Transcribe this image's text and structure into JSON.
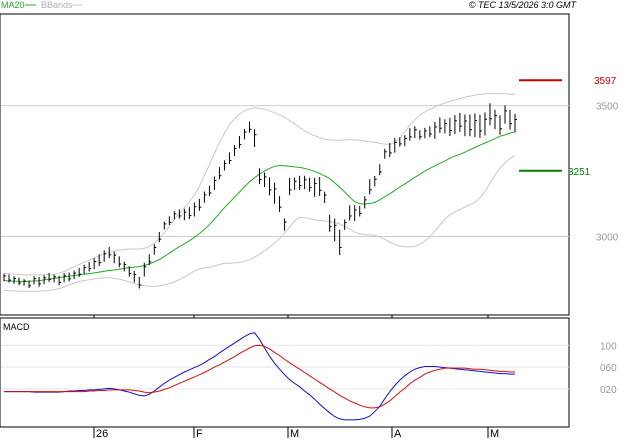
{
  "legend": {
    "ma20": "MA20",
    "bbands": "BBands"
  },
  "copyright": "© TEC 13/5/2026 3:0 GMT",
  "macd_label": "MACD",
  "colors": {
    "background": "#ffffff",
    "grid": "#cccccc",
    "axis": "#000000",
    "ma20": "#22aa22",
    "bbands": "#c8c8c8",
    "candle": "#000000",
    "macd": "#1010c8",
    "signal": "#d01010",
    "resistance": "#c00000",
    "support": "#008000"
  },
  "chart_data": [
    {
      "type": "bar",
      "title": "",
      "xlabel": "",
      "ylabel": "",
      "ylim": [
        2700,
        3850
      ],
      "x_ticks": [
        "26",
        "F",
        "M",
        "A",
        "M"
      ],
      "y_ticks": [
        3000,
        3500
      ],
      "levels": [
        {
          "label": "3597",
          "value": 3597,
          "kind": "resistance"
        },
        {
          "label": "3251",
          "value": 3251,
          "kind": "support"
        }
      ],
      "series": [
        {
          "name": "price",
          "bars": [
            [
              2858,
              2829
            ],
            [
              2855,
              2824
            ],
            [
              2848,
              2819
            ],
            [
              2843,
              2814
            ],
            [
              2837,
              2812
            ],
            [
              2832,
              2803
            ],
            [
              2848,
              2817
            ],
            [
              2845,
              2808
            ],
            [
              2852,
              2818
            ],
            [
              2860,
              2826
            ],
            [
              2855,
              2825
            ],
            [
              2850,
              2813
            ],
            [
              2860,
              2825
            ],
            [
              2862,
              2828
            ],
            [
              2870,
              2837
            ],
            [
              2880,
              2846
            ],
            [
              2892,
              2856
            ],
            [
              2902,
              2866
            ],
            [
              2917,
              2875
            ],
            [
              2932,
              2887
            ],
            [
              2947,
              2903
            ],
            [
              2960,
              2917
            ],
            [
              2942,
              2898
            ],
            [
              2924,
              2882
            ],
            [
              2904,
              2867
            ],
            [
              2886,
              2847
            ],
            [
              2868,
              2824
            ],
            [
              2846,
              2801
            ],
            [
              2900,
              2847
            ],
            [
              2932,
              2891
            ],
            [
              2970,
              2930
            ],
            [
              3017,
              2978
            ],
            [
              3057,
              3027
            ],
            [
              3077,
              3044
            ],
            [
              3096,
              3065
            ],
            [
              3103,
              3068
            ],
            [
              3106,
              3062
            ],
            [
              3112,
              3066
            ],
            [
              3130,
              3076
            ],
            [
              3144,
              3098
            ],
            [
              3172,
              3129
            ],
            [
              3194,
              3154
            ],
            [
              3229,
              3178
            ],
            [
              3265,
              3218
            ],
            [
              3291,
              3252
            ],
            [
              3321,
              3277
            ],
            [
              3349,
              3307
            ],
            [
              3384,
              3337
            ],
            [
              3411,
              3371
            ],
            [
              3439,
              3397
            ],
            [
              3409,
              3342
            ],
            [
              3260,
              3200
            ],
            [
              3244,
              3189
            ],
            [
              3226,
              3157
            ],
            [
              3206,
              3125
            ],
            [
              3154,
              3094
            ],
            [
              3069,
              3022
            ],
            [
              3224,
              3158
            ],
            [
              3225,
              3178
            ],
            [
              3232,
              3178
            ],
            [
              3232,
              3181
            ],
            [
              3225,
              3171
            ],
            [
              3224,
              3152
            ],
            [
              3227,
              3155
            ],
            [
              3171,
              3128
            ],
            [
              3083,
              3018
            ],
            [
              3069,
              2981
            ],
            [
              3026,
              2929
            ],
            [
              3065,
              3025
            ],
            [
              3119,
              3061
            ],
            [
              3119,
              3059
            ],
            [
              3117,
              3076
            ],
            [
              3154,
              3107
            ],
            [
              3219,
              3161
            ],
            [
              3231,
              3191
            ],
            [
              3276,
              3234
            ],
            [
              3335,
              3297
            ],
            [
              3357,
              3303
            ],
            [
              3376,
              3320
            ],
            [
              3379,
              3343
            ],
            [
              3387,
              3345
            ],
            [
              3414,
              3366
            ],
            [
              3421,
              3376
            ],
            [
              3406,
              3370
            ],
            [
              3415,
              3375
            ],
            [
              3421,
              3379
            ],
            [
              3438,
              3373
            ],
            [
              3455,
              3396
            ],
            [
              3448,
              3394
            ],
            [
              3453,
              3384
            ],
            [
              3464,
              3391
            ],
            [
              3472,
              3400
            ],
            [
              3466,
              3383
            ],
            [
              3466,
              3383
            ],
            [
              3470,
              3380
            ],
            [
              3465,
              3377
            ],
            [
              3474,
              3386
            ],
            [
              3509,
              3425
            ],
            [
              3484,
              3410
            ],
            [
              3463,
              3389
            ],
            [
              3501,
              3431
            ],
            [
              3484,
              3408
            ],
            [
              3468,
              3398
            ]
          ]
        },
        {
          "name": "MA20",
          "values": [
            2832,
            2830,
            2829,
            2829,
            2828,
            2829,
            2830,
            2831,
            2834,
            2837,
            2840,
            2843,
            2846,
            2848,
            2851,
            2853,
            2856,
            2858,
            2861,
            2864,
            2867,
            2870,
            2872,
            2875,
            2878,
            2881,
            2883,
            2885,
            2889,
            2895,
            2903,
            2912,
            2923,
            2936,
            2949,
            2961,
            2972,
            2984,
            2997,
            3011,
            3027,
            3045,
            3066,
            3088,
            3110,
            3130,
            3150,
            3170,
            3190,
            3209,
            3224,
            3238,
            3250,
            3260,
            3268,
            3271,
            3270,
            3268,
            3266,
            3264,
            3260,
            3255,
            3249,
            3241,
            3232,
            3221,
            3205,
            3188,
            3170,
            3150,
            3133,
            3125,
            3124,
            3126,
            3130,
            3140,
            3152,
            3163,
            3176,
            3189,
            3201,
            3213,
            3226,
            3237,
            3250,
            3260,
            3270,
            3280,
            3288,
            3299,
            3307,
            3314,
            3322,
            3331,
            3340,
            3349,
            3357,
            3365,
            3374,
            3383,
            3388,
            3395,
            3400
          ]
        },
        {
          "name": "BBands upper",
          "values": [
            2860,
            2858,
            2856,
            2855,
            2854,
            2853,
            2853,
            2853,
            2854,
            2855,
            2856,
            2860,
            2866,
            2875,
            2884,
            2893,
            2901,
            2909,
            2918,
            2926,
            2934,
            2940,
            2944,
            2948,
            2950,
            2952,
            2952,
            2952,
            2955,
            2962,
            2974,
            2992,
            3015,
            3039,
            3065,
            3089,
            3111,
            3133,
            3159,
            3192,
            3233,
            3274,
            3317,
            3358,
            3394,
            3426,
            3450,
            3468,
            3480,
            3488,
            3492,
            3490,
            3486,
            3480,
            3473,
            3465,
            3455,
            3443,
            3430,
            3417,
            3404,
            3393,
            3385,
            3378,
            3372,
            3369,
            3368,
            3368,
            3369,
            3370,
            3370,
            3368,
            3365,
            3362,
            3360,
            3356,
            3353,
            3352,
            3358,
            3376,
            3400,
            3425,
            3446,
            3463,
            3476,
            3486,
            3495,
            3503,
            3510,
            3517,
            3522,
            3527,
            3532,
            3536,
            3540,
            3543,
            3545,
            3546,
            3546,
            3546,
            3545,
            3544,
            3543
          ]
        },
        {
          "name": "BBands lower",
          "values": [
            2795,
            2793,
            2792,
            2791,
            2791,
            2790,
            2790,
            2791,
            2792,
            2794,
            2797,
            2801,
            2807,
            2815,
            2822,
            2828,
            2832,
            2835,
            2838,
            2840,
            2842,
            2842,
            2840,
            2837,
            2832,
            2826,
            2820,
            2815,
            2812,
            2810,
            2810,
            2811,
            2815,
            2820,
            2826,
            2835,
            2845,
            2857,
            2868,
            2876,
            2880,
            2882,
            2887,
            2893,
            2897,
            2898,
            2899,
            2901,
            2905,
            2911,
            2921,
            2932,
            2945,
            2959,
            2975,
            2992,
            3012,
            3037,
            3060,
            3073,
            3072,
            3068,
            3064,
            3061,
            3059,
            3057,
            3054,
            3048,
            3039,
            3028,
            3017,
            3010,
            3007,
            3006,
            3004,
            2998,
            2989,
            2979,
            2970,
            2964,
            2960,
            2960,
            2963,
            2970,
            2982,
            2999,
            3020,
            3044,
            3066,
            3083,
            3094,
            3103,
            3112,
            3121,
            3130,
            3148,
            3172,
            3203,
            3235,
            3262,
            3281,
            3298,
            3309
          ]
        }
      ]
    },
    {
      "type": "line",
      "title": "MACD",
      "xlabel": "",
      "ylabel": "",
      "ylim": [
        -50,
        150
      ],
      "y_ticks": [
        "100",
        "060",
        "020"
      ],
      "series": [
        {
          "name": "MACD",
          "values": [
            15,
            15,
            15,
            15,
            15,
            15,
            14,
            14,
            14,
            14,
            14,
            14,
            15,
            16,
            16,
            17,
            17,
            18,
            18,
            19,
            20,
            21,
            20,
            18,
            16,
            14,
            11,
            8,
            7,
            10,
            16,
            23,
            30,
            36,
            41,
            46,
            51,
            55,
            59,
            63,
            68,
            74,
            79,
            86,
            92,
            98,
            104,
            110,
            116,
            121,
            123,
            111,
            95,
            80,
            67,
            56,
            46,
            37,
            30,
            24,
            16,
            9,
            1,
            -8,
            -16,
            -24,
            -31,
            -35,
            -37,
            -37,
            -37,
            -36,
            -34,
            -30,
            -22,
            -12,
            2,
            15,
            26,
            36,
            44,
            51,
            56,
            59,
            61,
            61,
            61,
            60,
            59,
            58,
            57,
            56,
            55,
            54,
            53,
            52,
            51,
            50,
            49,
            48,
            48,
            47,
            47
          ]
        },
        {
          "name": "Signal",
          "values": [
            15,
            15,
            15,
            15,
            15,
            15,
            15,
            15,
            15,
            15,
            15,
            15,
            15,
            15,
            15,
            15,
            15,
            16,
            16,
            17,
            17,
            18,
            18,
            18,
            18,
            18,
            17,
            16,
            14,
            13,
            14,
            16,
            19,
            22,
            26,
            30,
            34,
            38,
            42,
            46,
            50,
            55,
            60,
            64,
            69,
            74,
            79,
            85,
            90,
            95,
            99,
            100,
            98,
            93,
            87,
            81,
            74,
            68,
            62,
            56,
            50,
            44,
            38,
            32,
            26,
            20,
            14,
            8,
            3,
            -2,
            -6,
            -10,
            -13,
            -15,
            -15,
            -13,
            -8,
            -2,
            6,
            14,
            21,
            29,
            36,
            41,
            47,
            51,
            54,
            56,
            58,
            58,
            58,
            58,
            58,
            57,
            56,
            56,
            55,
            54,
            53,
            52,
            52,
            51,
            51
          ]
        }
      ]
    }
  ]
}
